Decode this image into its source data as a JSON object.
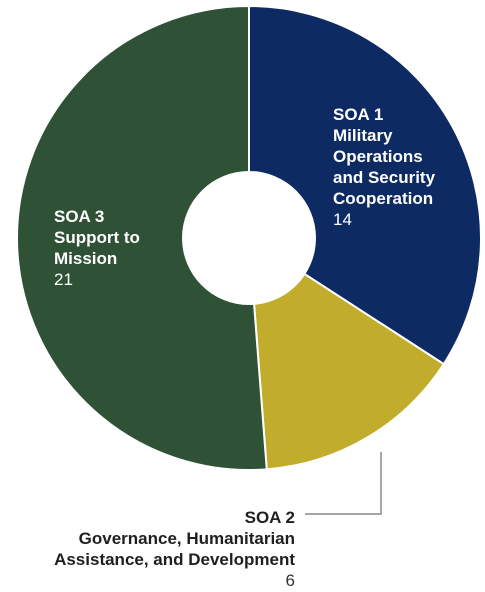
{
  "chart_data": {
    "type": "pie",
    "slices": [
      {
        "id": "soa1",
        "code": "SOA 1",
        "lines": [
          "Military",
          "Operations",
          "and Security",
          "Cooperation"
        ],
        "value": 14,
        "color": "#0e2a63"
      },
      {
        "id": "soa2",
        "code": "SOA 2",
        "lines": [
          "Governance, Humanitarian",
          "Assistance, and Development"
        ],
        "value": 6,
        "color": "#c2ac2b"
      },
      {
        "id": "soa3",
        "code": "SOA 3",
        "lines": [
          "Support to",
          "Mission"
        ],
        "value": 21,
        "color": "#2f5237"
      }
    ]
  },
  "labels": {
    "soa1": {
      "code": "SOA 1",
      "line1": "Military",
      "line2": "Operations",
      "line3": "and Security",
      "line4": "Cooperation",
      "value": "14"
    },
    "soa2": {
      "code": "SOA 2",
      "line1": "Governance, Humanitarian",
      "line2": "Assistance, and Development",
      "value": "6"
    },
    "soa3": {
      "code": "SOA 3",
      "line1": "Support to",
      "line2": "Mission",
      "value": "21"
    }
  }
}
